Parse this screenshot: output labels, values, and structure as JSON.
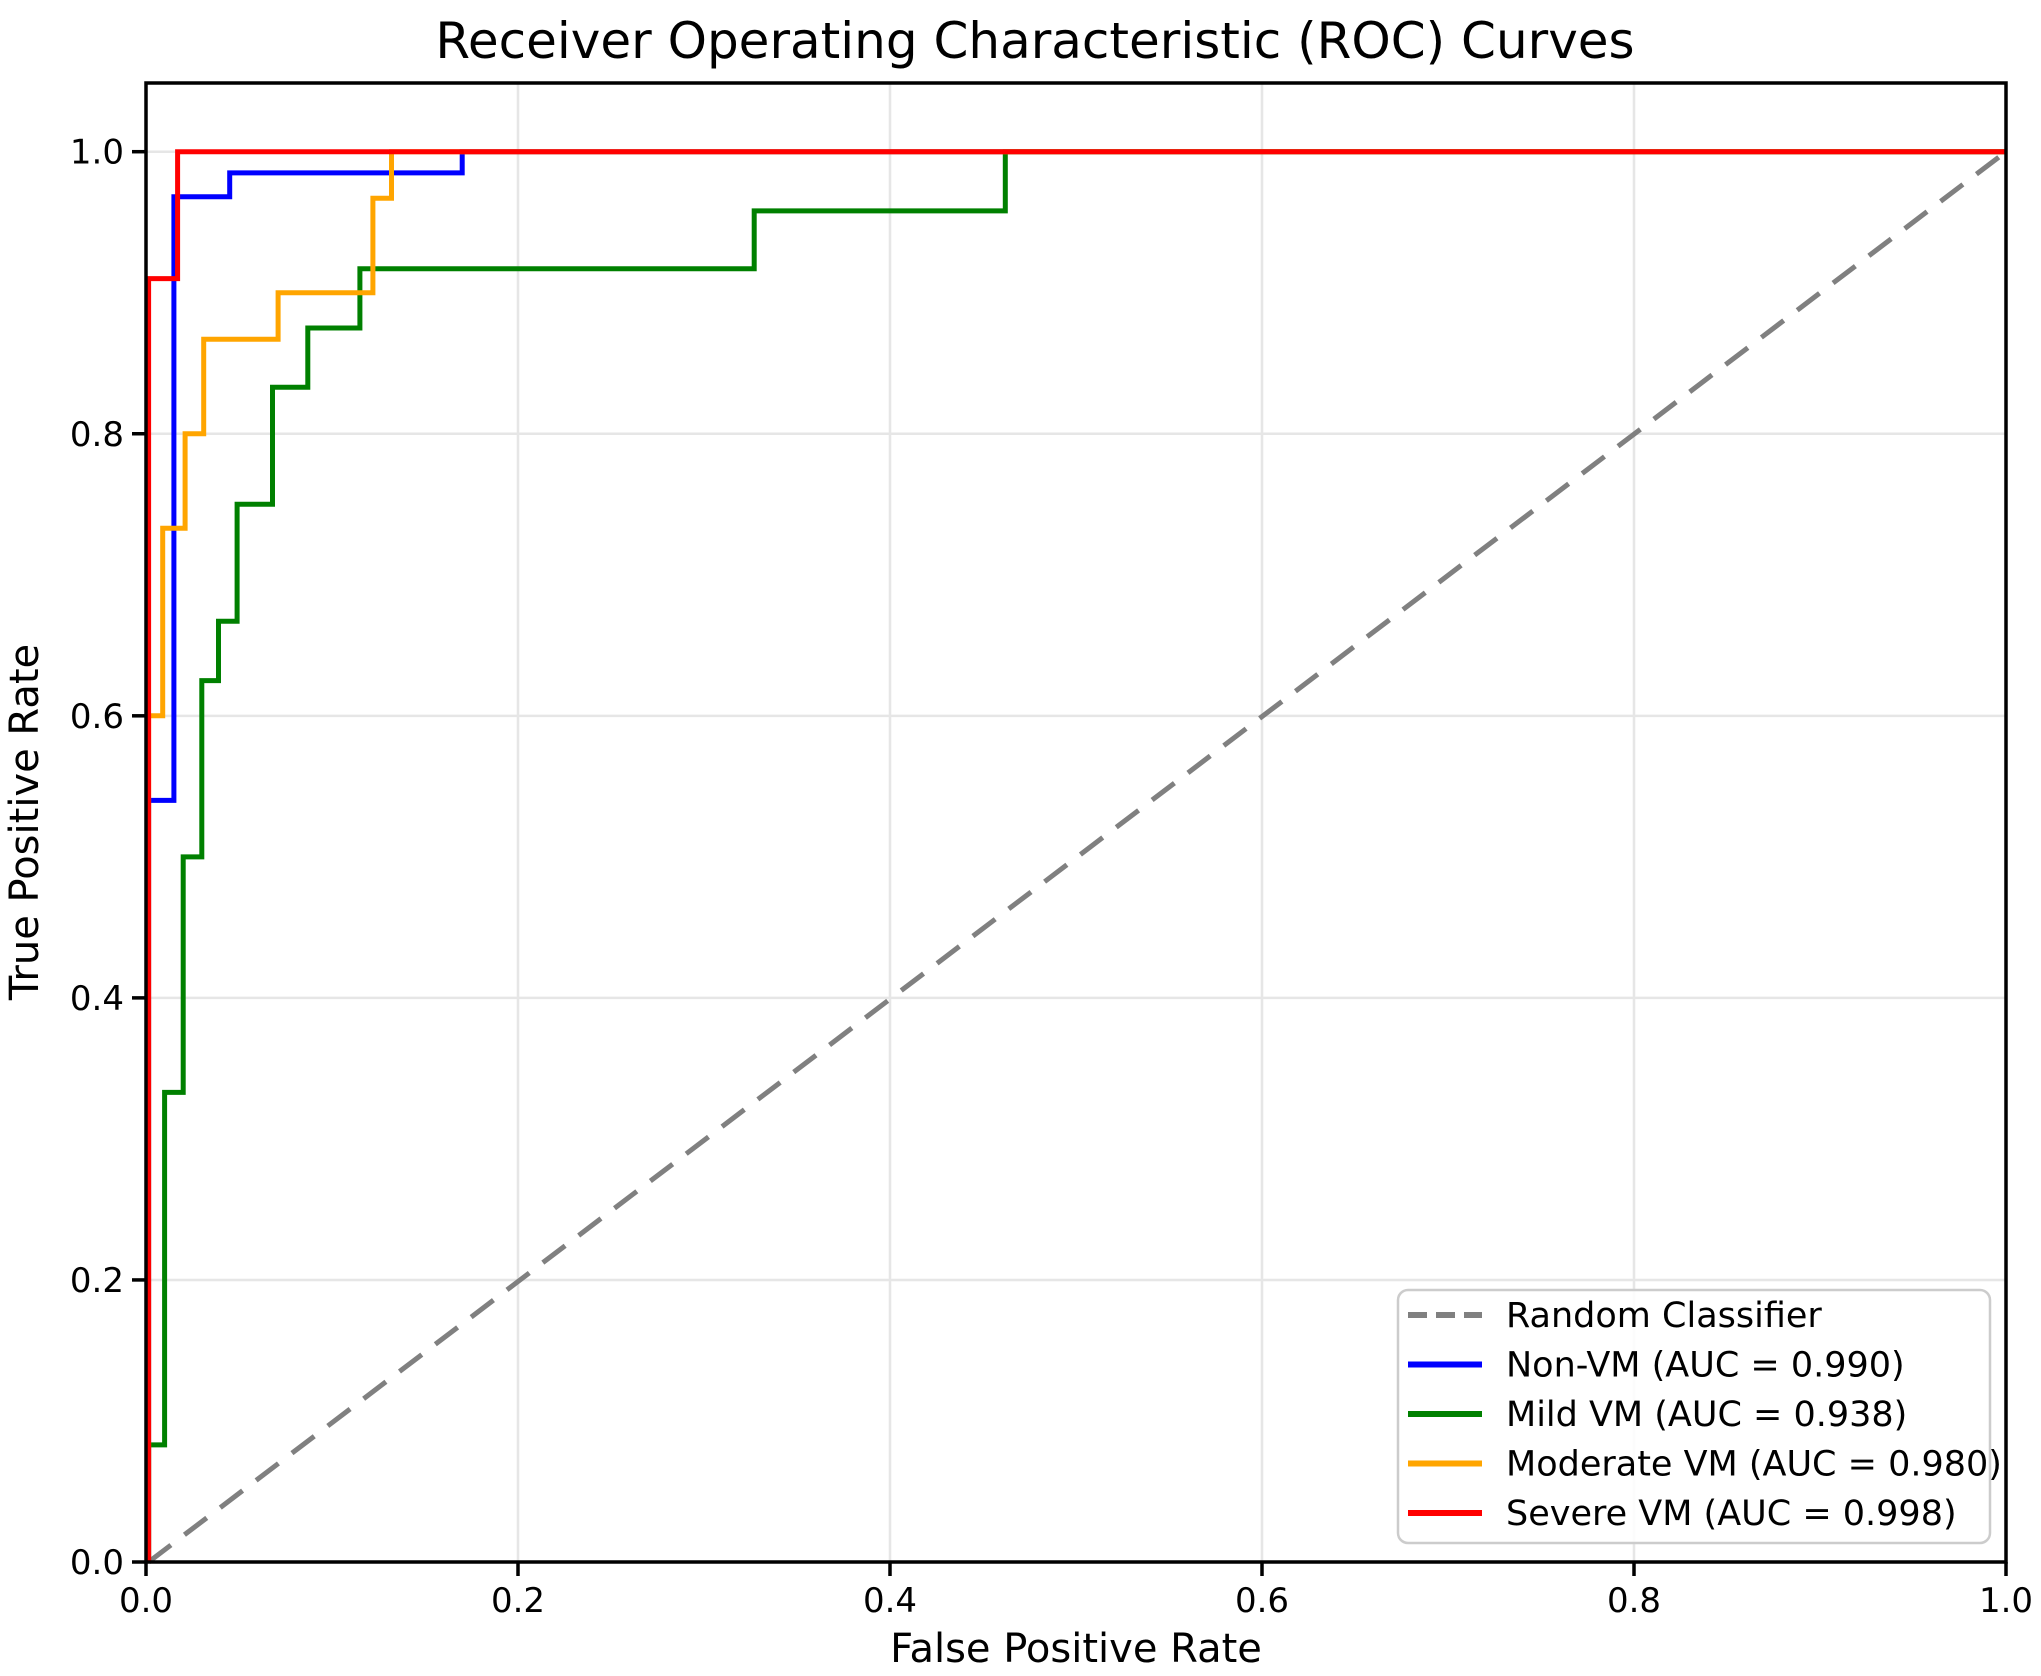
{
  "title": "Receiver Operating Characteristic (ROC) Curves",
  "axes": {
    "xlabel": "False Positive Rate",
    "ylabel": "True Positive Rate",
    "tick_values": [
      0,
      0.2,
      0.4,
      0.6,
      0.8,
      1.0
    ],
    "x_tick_labels": [
      "0.0",
      "0.2",
      "0.4",
      "0.6",
      "0.8",
      "1.0"
    ],
    "y_tick_labels": [
      "0.0",
      "0.2",
      "0.4",
      "0.6",
      "0.8",
      "1.0"
    ],
    "xlim": [
      0.0,
      1.0
    ],
    "ylim": [
      0.0,
      1.05
    ],
    "grid": true
  },
  "colors": {
    "background": "#ffffff",
    "grid": "#e6e6e6",
    "spine": "#000000",
    "legend_border": "#cccccc",
    "legend_fill": "#ffffff"
  },
  "legend": {
    "position": "lower-right"
  },
  "chart_data": {
    "type": "line",
    "subtype": "roc-step-curves",
    "title": "Receiver Operating Characteristic (ROC) Curves",
    "xlabel": "False Positive Rate",
    "ylabel": "True Positive Rate",
    "xlim": [
      0.0,
      1.0
    ],
    "ylim": [
      0.0,
      1.05
    ],
    "grid": true,
    "legend_position": "lower right",
    "series": [
      {
        "name": "Random Classifier",
        "color": "#808080",
        "dashed": true,
        "points": [
          [
            0,
            0
          ],
          [
            1,
            1
          ]
        ]
      },
      {
        "name": "Non-VM (AUC = 0.990)",
        "auc": 0.99,
        "color": "#0000ff",
        "dashed": false,
        "points": [
          [
            0,
            0
          ],
          [
            0,
            0.54
          ],
          [
            0.015,
            0.54
          ],
          [
            0.015,
            0.968
          ],
          [
            0.045,
            0.968
          ],
          [
            0.045,
            0.985
          ],
          [
            0.17,
            0.985
          ],
          [
            0.17,
            1.0
          ],
          [
            1,
            1
          ]
        ]
      },
      {
        "name": "Mild VM (AUC = 0.938)",
        "auc": 0.938,
        "color": "#008000",
        "dashed": false,
        "points": [
          [
            0,
            0
          ],
          [
            0,
            0.083
          ],
          [
            0.01,
            0.083
          ],
          [
            0.01,
            0.333
          ],
          [
            0.02,
            0.333
          ],
          [
            0.02,
            0.5
          ],
          [
            0.03,
            0.5
          ],
          [
            0.03,
            0.625
          ],
          [
            0.039,
            0.625
          ],
          [
            0.039,
            0.667
          ],
          [
            0.049,
            0.667
          ],
          [
            0.049,
            0.75
          ],
          [
            0.068,
            0.75
          ],
          [
            0.068,
            0.833
          ],
          [
            0.087,
            0.833
          ],
          [
            0.087,
            0.875
          ],
          [
            0.115,
            0.875
          ],
          [
            0.115,
            0.917
          ],
          [
            0.327,
            0.917
          ],
          [
            0.327,
            0.958
          ],
          [
            0.462,
            0.958
          ],
          [
            0.462,
            1.0
          ],
          [
            1,
            1
          ]
        ]
      },
      {
        "name": "Moderate VM (AUC = 0.980)",
        "auc": 0.98,
        "color": "#ffa500",
        "dashed": false,
        "points": [
          [
            0,
            0
          ],
          [
            0,
            0.6
          ],
          [
            0.009,
            0.6
          ],
          [
            0.009,
            0.733
          ],
          [
            0.021,
            0.733
          ],
          [
            0.021,
            0.8
          ],
          [
            0.031,
            0.8
          ],
          [
            0.031,
            0.867
          ],
          [
            0.071,
            0.867
          ],
          [
            0.071,
            0.9
          ],
          [
            0.122,
            0.9
          ],
          [
            0.122,
            0.967
          ],
          [
            0.132,
            0.967
          ],
          [
            0.132,
            1.0
          ],
          [
            1,
            1
          ]
        ]
      },
      {
        "name": "Severe VM (AUC = 0.998)",
        "auc": 0.998,
        "color": "#ff0000",
        "dashed": false,
        "points": [
          [
            0,
            0
          ],
          [
            0,
            0.91
          ],
          [
            0.017,
            0.91
          ],
          [
            0.017,
            1.0
          ],
          [
            1,
            1
          ]
        ]
      }
    ]
  }
}
